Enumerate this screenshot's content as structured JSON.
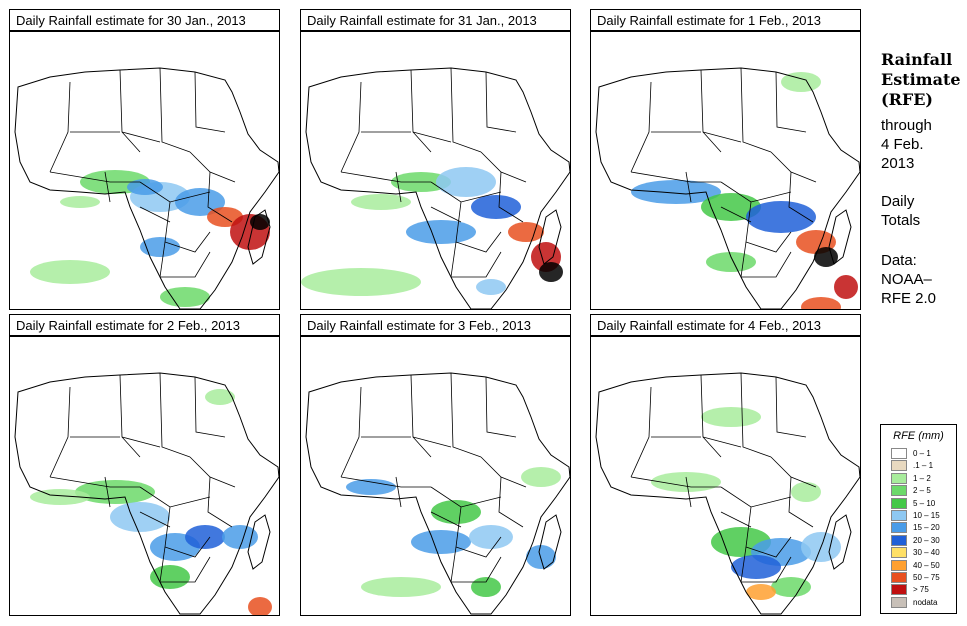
{
  "panels": [
    {
      "title": "Daily Rainfall estimate for  30 Jan., 2013"
    },
    {
      "title": "Daily Rainfall estimate for  31 Jan., 2013"
    },
    {
      "title": "Daily Rainfall estimate for  1 Feb., 2013"
    },
    {
      "title": "Daily Rainfall estimate for  2 Feb., 2013"
    },
    {
      "title": "Daily Rainfall estimate for  3 Feb., 2013"
    },
    {
      "title": "Daily Rainfall estimate for  4 Feb., 2013"
    }
  ],
  "side": {
    "title_line1": "Rainfall",
    "title_line2": "Estimate",
    "title_line3": "(RFE)",
    "through": "through",
    "date1": "4 Feb.",
    "date2": "2013",
    "daily": "Daily",
    "totals": "Totals",
    "data_label": "Data:",
    "source1": "NOAA–",
    "source2": "RFE 2.0"
  },
  "legend": {
    "title": "RFE (mm)",
    "entries": [
      {
        "label": "0 – 1",
        "color": "#ffffff"
      },
      {
        "label": ".1 – 1",
        "color": "#e8d9c0"
      },
      {
        "label": "1 – 2",
        "color": "#a8ec9c"
      },
      {
        "label": "2 – 5",
        "color": "#6cd96a"
      },
      {
        "label": "5 – 10",
        "color": "#44c848"
      },
      {
        "label": "10 – 15",
        "color": "#8ec8f2"
      },
      {
        "label": "15 – 20",
        "color": "#4a9ce8"
      },
      {
        "label": "20 – 30",
        "color": "#2060d8"
      },
      {
        "label": "30 – 40",
        "color": "#ffe066"
      },
      {
        "label": "40 – 50",
        "color": "#ffa030"
      },
      {
        "label": "50 – 75",
        "color": "#e85020"
      },
      {
        "label": "> 75",
        "color": "#c01010"
      },
      {
        "label": "nodata",
        "color": "#c8c0b8"
      }
    ]
  }
}
